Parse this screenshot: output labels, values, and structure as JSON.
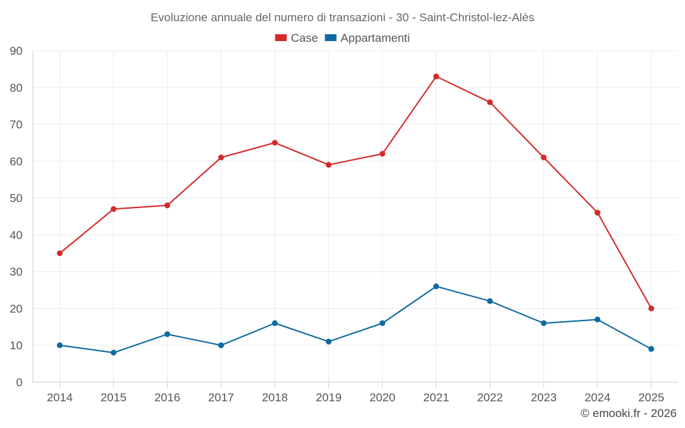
{
  "chart_data": {
    "type": "line",
    "title": "Evoluzione annuale del numero di transazioni - 30 - Saint-Christol-lez-Alès",
    "xlabel": "",
    "ylabel": "",
    "categories": [
      "2014",
      "2015",
      "2016",
      "2017",
      "2018",
      "2019",
      "2020",
      "2021",
      "2022",
      "2023",
      "2024",
      "2025"
    ],
    "ylim": [
      0,
      90
    ],
    "yticks": [
      "0",
      "10",
      "20",
      "30",
      "40",
      "50",
      "60",
      "70",
      "80",
      "90"
    ],
    "grid": true,
    "legend_position": "top-center",
    "series": [
      {
        "name": "Case",
        "color": "#d32a2a",
        "values": [
          35,
          47,
          48,
          61,
          65,
          59,
          62,
          83,
          76,
          61,
          46,
          20
        ]
      },
      {
        "name": "Appartamenti",
        "color": "#0f6aa0",
        "values": [
          10,
          8,
          13,
          10,
          16,
          11,
          16,
          26,
          22,
          16,
          17,
          9
        ]
      }
    ]
  },
  "credit": "© emooki.fr - 2026"
}
